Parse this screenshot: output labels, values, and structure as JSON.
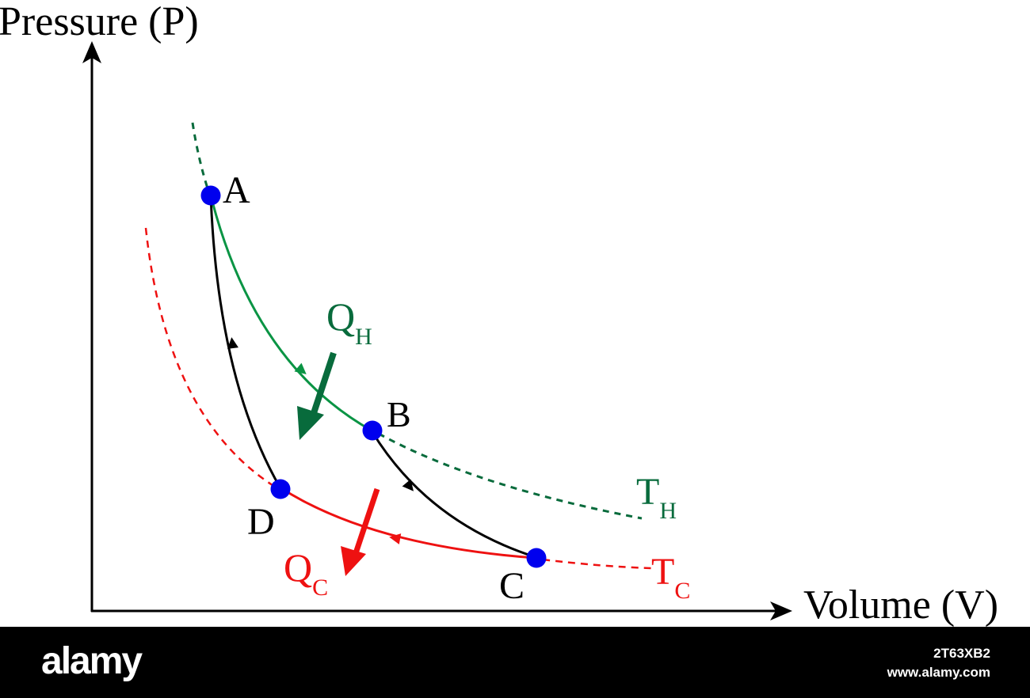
{
  "axes": {
    "y_label": "Pressure (P)",
    "x_label": "Volume (V)"
  },
  "points": {
    "a": "A",
    "b": "B",
    "c": "C",
    "d": "D"
  },
  "heat": {
    "hot": {
      "main": "Q",
      "sub": "H"
    },
    "cold": {
      "main": "Q",
      "sub": "C"
    }
  },
  "isotherms": {
    "hot": {
      "main": "T",
      "sub": "H"
    },
    "cold": {
      "main": "T",
      "sub": "C"
    }
  },
  "colors": {
    "hot": "#0a9444",
    "hot_dark": "#086b3c",
    "cold": "#ee1111",
    "adiabat": "#000000",
    "state_point": "#0000ee"
  },
  "footer": {
    "logo": "alamy",
    "image_id": "2T63XB2",
    "url": "www.alamy.com"
  }
}
